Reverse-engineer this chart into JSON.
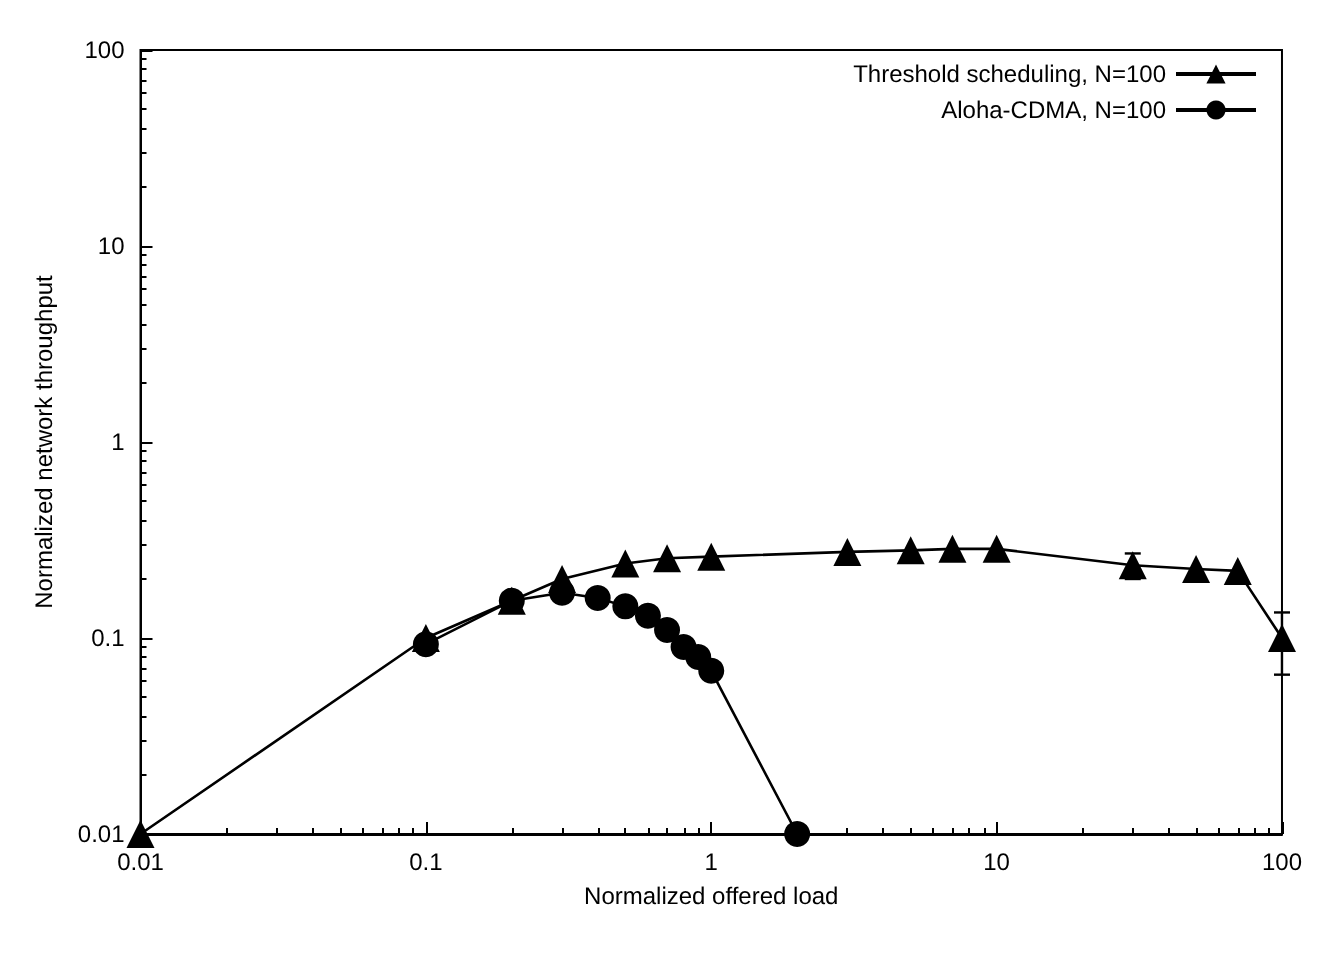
{
  "chart_data": {
    "type": "line",
    "xlabel": "Normalized offered load",
    "ylabel": "Normalized network throughput",
    "log": "xy",
    "xlim": [
      0.01,
      100
    ],
    "ylim": [
      0.01,
      100
    ],
    "xticks": [
      0.01,
      0.1,
      1,
      10,
      100
    ],
    "yticks": [
      0.01,
      0.1,
      1,
      10,
      100
    ],
    "grid": false,
    "legend": "top right",
    "line_style": "solid",
    "series": [
      {
        "name": "Threshold scheduling, N=100",
        "color": "#000000",
        "marker": "triangle",
        "x": [
          0.01,
          0.1,
          0.2,
          0.3,
          0.5,
          0.7,
          1,
          3,
          5,
          7,
          10,
          30,
          50,
          70,
          100
        ],
        "values": [
          0.01,
          0.1,
          0.155,
          0.2,
          0.24,
          0.255,
          0.26,
          0.275,
          0.28,
          0.285,
          0.285,
          0.235,
          0.225,
          0.22,
          0.1
        ],
        "errors": [
          null,
          null,
          null,
          null,
          null,
          null,
          null,
          null,
          null,
          null,
          null,
          [
            0.2,
            0.27
          ],
          null,
          null,
          [
            0.065,
            0.135
          ]
        ]
      },
      {
        "name": "Aloha-CDMA, N=100",
        "color": "#000000",
        "marker": "circle",
        "x": [
          0.1,
          0.2,
          0.3,
          0.4,
          0.5,
          0.6,
          0.7,
          0.8,
          0.9,
          1,
          2
        ],
        "values": [
          0.093,
          0.155,
          0.17,
          0.16,
          0.145,
          0.13,
          0.11,
          0.09,
          0.08,
          0.068,
          0.01
        ]
      }
    ]
  }
}
